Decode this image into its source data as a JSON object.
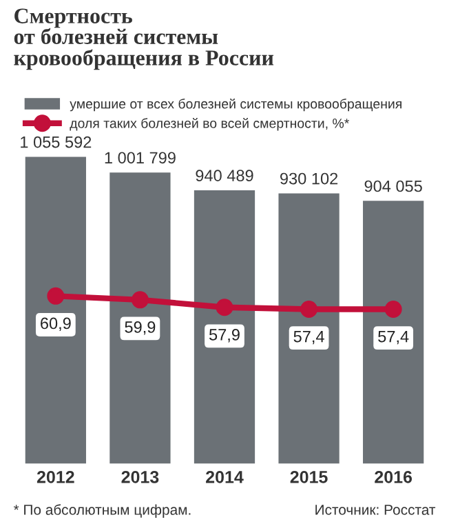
{
  "chart_data": {
    "type": "bar",
    "title": "Смертность\nот болезней системы\nкровообращения в России",
    "categories": [
      "2012",
      "2013",
      "2014",
      "2015",
      "2016"
    ],
    "series": [
      {
        "name": "умершие от всех болезней системы кровообращения",
        "color": "#6b7176",
        "values": [
          1055592,
          1001799,
          940489,
          930102,
          904055
        ],
        "value_labels": [
          "1 055 592",
          "1 001 799",
          "940 489",
          "930 102",
          "904 055"
        ]
      },
      {
        "name": "доля таких болезней во всей смертности, %*",
        "type": "line",
        "axis": "y2",
        "color": "#c2103a",
        "marker": "circle",
        "values": [
          60.9,
          59.9,
          57.9,
          57.4,
          57.4
        ],
        "value_labels": [
          "60,9",
          "59,9",
          "57,9",
          "57,4",
          "57,4"
        ]
      }
    ],
    "tick_labels": "x",
    "grid": false,
    "legend": "top",
    "annotations": [
      "* По абсолютным цифрам.",
      "Источник: Росстат"
    ]
  }
}
